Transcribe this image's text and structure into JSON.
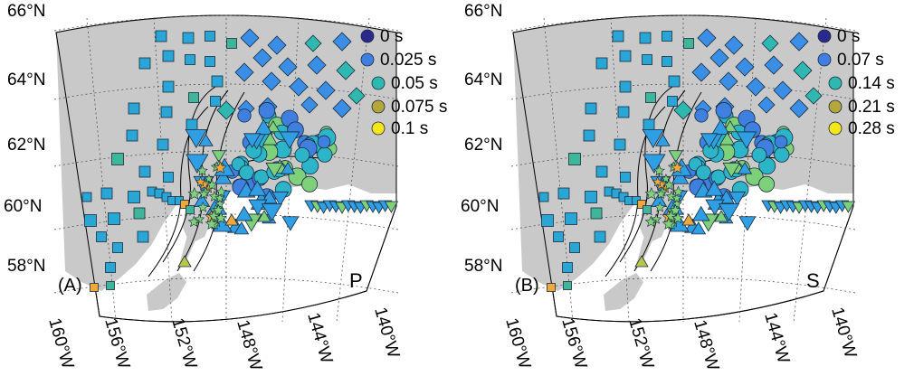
{
  "colors": {
    "land": "#c9c9c9",
    "sea": "#ffffff",
    "gridline": "#444444",
    "fault": "#000000",
    "scale": [
      "#2b2a8c",
      "#3f7fe0",
      "#2fb8b0",
      "#b5a63c",
      "#f5e61c"
    ],
    "marker_squares": "#2aa6d6",
    "marker_diamonds": "#3a8ee6",
    "marker_triangles": "#2f9ee3",
    "marker_circles": "#2cb5c8",
    "marker_stars": "#7fd07a"
  },
  "map": {
    "lat_labels": [
      "66°N",
      "64°N",
      "62°N",
      "60°N",
      "58°N"
    ],
    "lon_labels": [
      "160°W",
      "156°W",
      "152°W",
      "148°W",
      "144°W",
      "140°W"
    ]
  },
  "panels": [
    {
      "letter": "(A)",
      "phase": "P",
      "legend": [
        {
          "label": "0 s",
          "color": "#2b2a8c"
        },
        {
          "label": "0.025 s",
          "color": "#3f7fe0"
        },
        {
          "label": "0.05 s",
          "color": "#2fb8b0"
        },
        {
          "label": "0.075 s",
          "color": "#b5a63c"
        },
        {
          "label": "0.1 s",
          "color": "#f5e61c"
        }
      ]
    },
    {
      "letter": "(B)",
      "phase": "S",
      "legend": [
        {
          "label": "0 s",
          "color": "#2b2a8c"
        },
        {
          "label": "0.07 s",
          "color": "#3f7fe0"
        },
        {
          "label": "0.14 s",
          "color": "#2fb8b0"
        },
        {
          "label": "0.21 s",
          "color": "#b5a63c"
        },
        {
          "label": "0.28 s",
          "color": "#f5e61c"
        }
      ]
    }
  ]
}
